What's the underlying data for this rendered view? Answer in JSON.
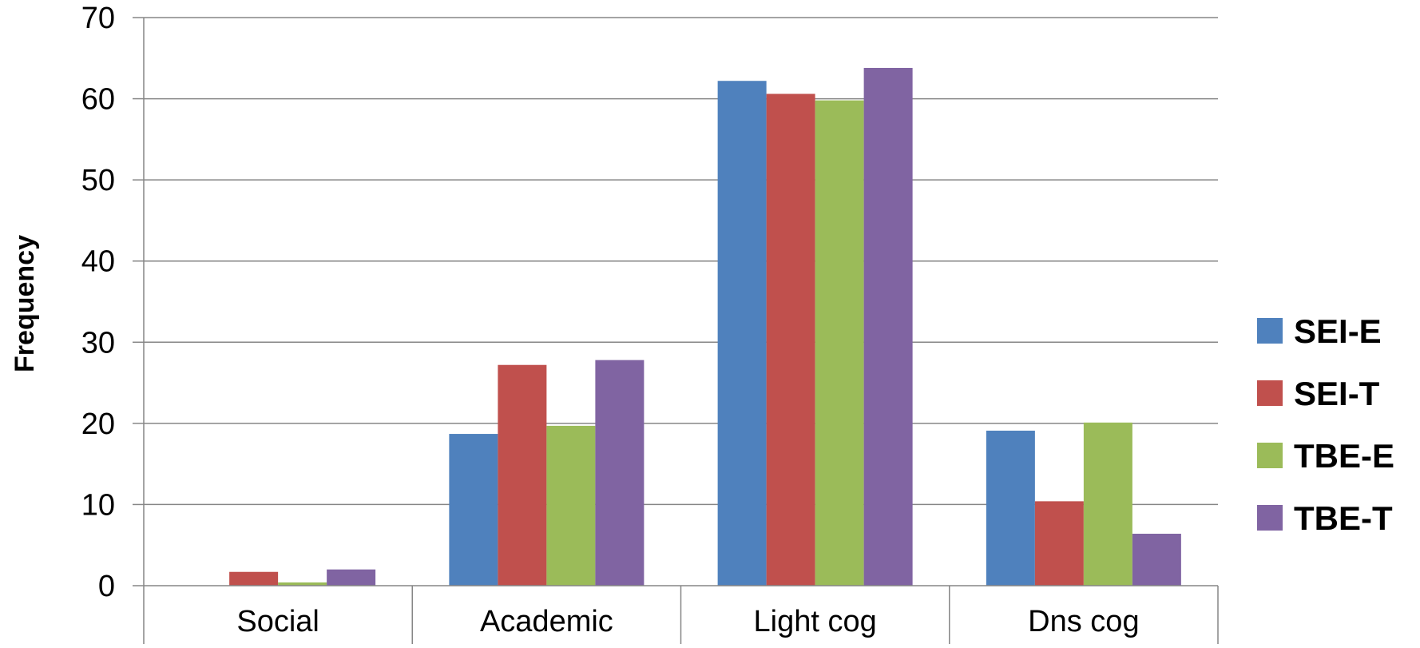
{
  "chart_data": {
    "type": "bar",
    "title": "",
    "xlabel": "",
    "ylabel": "Frequency",
    "ylim": [
      0,
      70
    ],
    "yticks": [
      0,
      10,
      20,
      30,
      40,
      50,
      60,
      70
    ],
    "grid": true,
    "legend_position": "right",
    "categories": [
      "Social",
      "Academic",
      "Light cog",
      "Dns cog"
    ],
    "series": [
      {
        "name": "SEI-E",
        "color": "#4F81BD",
        "values": [
          0,
          18.7,
          62.2,
          19.1
        ]
      },
      {
        "name": "SEI-T",
        "color": "#C0504D",
        "values": [
          1.7,
          27.2,
          60.6,
          10.4
        ]
      },
      {
        "name": "TBE-E",
        "color": "#9BBB59",
        "values": [
          0.4,
          19.7,
          59.8,
          20.1
        ]
      },
      {
        "name": "TBE-T",
        "color": "#8064A2",
        "values": [
          2.0,
          27.8,
          63.8,
          6.4
        ]
      }
    ]
  }
}
